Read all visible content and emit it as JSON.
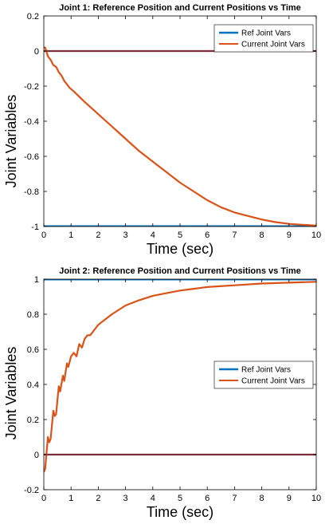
{
  "colors": {
    "ref": "#0072BD",
    "current": "#D95319",
    "zero_line": "#7E2F3E",
    "axes": "#000000",
    "background": "#ffffff"
  },
  "chart_data": [
    {
      "type": "line",
      "title": "Joint 1: Reference Position and Current Positions vs Time",
      "xlabel": "Time (sec)",
      "ylabel": "Joint Variables",
      "xlim": [
        0,
        10
      ],
      "ylim": [
        -1,
        0.2
      ],
      "xticks": [
        0,
        1,
        2,
        3,
        4,
        5,
        6,
        7,
        8,
        9,
        10
      ],
      "xtick_labels": [
        "0",
        "1",
        "2",
        "3",
        "4",
        "5",
        "6",
        "7",
        "8",
        "9",
        "10"
      ],
      "yticks": [
        -1,
        -0.8,
        -0.6,
        -0.4,
        -0.2,
        0,
        0.2
      ],
      "ytick_labels": [
        "-1",
        "-0.8",
        "-0.6",
        "-0.4",
        "-0.2",
        "0",
        "0.2"
      ],
      "grid": false,
      "legend_position": "top-right",
      "series": [
        {
          "name": "Ref Joint Vars",
          "color": "#0072BD",
          "x": [
            0,
            10
          ],
          "y": [
            -1,
            -1
          ]
        },
        {
          "name": "Current Joint Vars",
          "color": "#D95319",
          "x": [
            0,
            0.05,
            0.15,
            0.25,
            0.35,
            0.45,
            0.55,
            0.65,
            0.75,
            0.85,
            0.95,
            1.1,
            1.3,
            1.5,
            2,
            2.5,
            3,
            3.5,
            4,
            4.5,
            5,
            5.5,
            6,
            6.5,
            7,
            7.5,
            8,
            8.5,
            9,
            9.5,
            10
          ],
          "y": [
            0.02,
            0.02,
            -0.03,
            -0.05,
            -0.08,
            -0.09,
            -0.12,
            -0.14,
            -0.17,
            -0.19,
            -0.21,
            -0.23,
            -0.26,
            -0.29,
            -0.36,
            -0.43,
            -0.5,
            -0.57,
            -0.63,
            -0.69,
            -0.75,
            -0.8,
            -0.85,
            -0.89,
            -0.92,
            -0.94,
            -0.96,
            -0.975,
            -0.985,
            -0.99,
            -0.995
          ]
        }
      ],
      "reference_lines": [
        {
          "axis": "y",
          "value": 0,
          "color": "#7E2F3E"
        }
      ]
    },
    {
      "type": "line",
      "title": "Joint 2: Reference Position and Current Positions vs Time",
      "xlabel": "Time (sec)",
      "ylabel": "Joint Variables",
      "xlim": [
        0,
        10
      ],
      "ylim": [
        -0.2,
        1
      ],
      "xticks": [
        0,
        1,
        2,
        3,
        4,
        5,
        6,
        7,
        8,
        9,
        10
      ],
      "xtick_labels": [
        "0",
        "1",
        "2",
        "3",
        "4",
        "5",
        "6",
        "7",
        "8",
        "9",
        "10"
      ],
      "yticks": [
        -0.2,
        0,
        0.2,
        0.4,
        0.6,
        0.8,
        1
      ],
      "ytick_labels": [
        "-0.2",
        "0",
        "0.2",
        "0.4",
        "0.6",
        "0.8",
        "1"
      ],
      "grid": false,
      "legend_position": "upper-right",
      "series": [
        {
          "name": "Ref Joint Vars",
          "color": "#0072BD",
          "x": [
            0,
            10
          ],
          "y": [
            1,
            1
          ]
        },
        {
          "name": "Current Joint Vars",
          "color": "#D95319",
          "x": [
            0,
            0.05,
            0.15,
            0.2,
            0.25,
            0.35,
            0.4,
            0.45,
            0.55,
            0.6,
            0.7,
            0.75,
            0.85,
            0.9,
            1.0,
            1.1,
            1.2,
            1.3,
            1.4,
            1.5,
            1.6,
            1.7,
            1.8,
            2,
            2.5,
            3,
            3.5,
            4,
            4.5,
            5,
            5.5,
            6,
            7,
            8,
            9,
            10
          ],
          "y": [
            -0.1,
            -0.08,
            0.1,
            0.07,
            0.09,
            0.25,
            0.22,
            0.23,
            0.39,
            0.36,
            0.45,
            0.42,
            0.52,
            0.5,
            0.56,
            0.58,
            0.56,
            0.63,
            0.61,
            0.66,
            0.68,
            0.68,
            0.7,
            0.74,
            0.8,
            0.85,
            0.88,
            0.905,
            0.92,
            0.935,
            0.945,
            0.955,
            0.965,
            0.975,
            0.98,
            0.985
          ]
        }
      ],
      "reference_lines": [
        {
          "axis": "y",
          "value": 0,
          "color": "#7E2F3E"
        }
      ]
    }
  ]
}
